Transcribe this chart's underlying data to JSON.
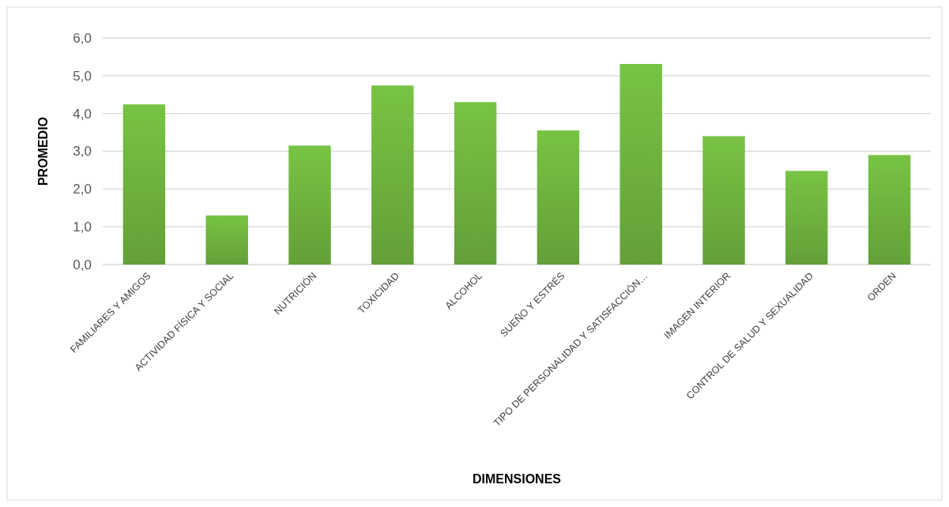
{
  "chart_data": {
    "type": "bar",
    "xlabel": "DIMENSIONES",
    "ylabel": "PROMEDIO",
    "categories": [
      "FAMILIARES Y AMIGOS",
      "ACTIVIDAD FÍSICA Y SOCIAL",
      "NUTRICIÓN",
      "TOXICIDAD",
      "ALCOHOL",
      "SUEÑO Y ESTRÉS",
      "TIPO DE PERSONALIDAD Y SATISFACCIÓN…",
      "IMAGEN INTERIOR",
      "CONTROL DE SALUD Y SEXUALIDAD",
      "ORDEN"
    ],
    "values": [
      4.24,
      1.3,
      3.15,
      4.74,
      4.3,
      3.55,
      5.31,
      3.4,
      2.48,
      2.9
    ],
    "color": "#6aac3c",
    "ylim": [
      0,
      6
    ],
    "yticks": [
      {
        "value": 0,
        "label": "0,0"
      },
      {
        "value": 1,
        "label": "1,0"
      },
      {
        "value": 2,
        "label": "2,0"
      },
      {
        "value": 3,
        "label": "3,0"
      },
      {
        "value": 4,
        "label": "4,0"
      },
      {
        "value": 5,
        "label": "5,0"
      },
      {
        "value": 6,
        "label": "6,0"
      }
    ],
    "grid": "y"
  }
}
